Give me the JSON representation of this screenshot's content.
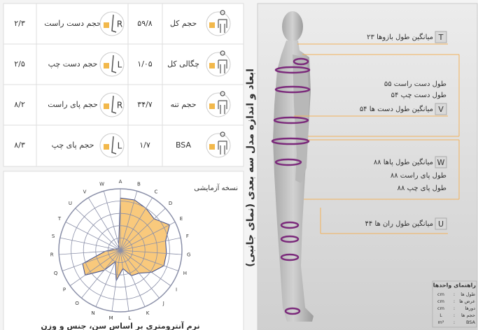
{
  "table": {
    "rows": [
      {
        "part_value": "۲/۳",
        "part_label": "حجم دست راست",
        "side": "R",
        "body_value": "۵۹/۸",
        "body_label": "حجم کل"
      },
      {
        "part_value": "۲/۵",
        "part_label": "حجم دست چپ",
        "side": "L",
        "body_value": "۱/۰۵",
        "body_label": "چگالی کل"
      },
      {
        "part_value": "۸/۲",
        "part_label": "حجم پای راست",
        "side": "R",
        "body_value": "۳۴/۷",
        "body_label": "حجم تنه"
      },
      {
        "part_value": "۸/۳",
        "part_label": "حجم پای چپ",
        "side": "L",
        "body_value": "۱/۷",
        "body_label": "BSA"
      }
    ]
  },
  "chart_data": {
    "type": "radar",
    "title": "نسخه آزمایشی",
    "caption": "نرم آنترومتری بر اساس سن، جنس و وزن",
    "categories": [
      "A",
      "B",
      "C",
      "D",
      "E",
      "F",
      "G",
      "H",
      "I",
      "J",
      "K",
      "L",
      "M",
      "N",
      "O",
      "P",
      "Q",
      "R",
      "S",
      "T",
      "U",
      "V",
      "W"
    ],
    "values": [
      85,
      85,
      80,
      75,
      90,
      75,
      75,
      75,
      62,
      48,
      45,
      30,
      50,
      20,
      42,
      70,
      65,
      25,
      10,
      5,
      5,
      5,
      10
    ],
    "rlim": [
      0,
      100
    ],
    "rticks": [
      20,
      40,
      60,
      80,
      100
    ],
    "fill": "#f9c97c",
    "grid_color": "#8a8fa8"
  },
  "figure": {
    "title": "ابعاد و اندازه مدل سه بعدی (نمای جانبی)",
    "annotations": [
      {
        "key": "T",
        "text": "میانگین طول بازوها ۲۳"
      },
      {
        "text": "طول دست راست ۵۵"
      },
      {
        "text": "طول دست چپ ۵۴"
      },
      {
        "key": "V",
        "text": "میانگین طول دست ها ۵۴"
      },
      {
        "key": "W",
        "text": "میانگین طول پاها ۸۸"
      },
      {
        "text": "طول پای راست ۸۸"
      },
      {
        "text": "طول پای چپ ۸۸"
      },
      {
        "key": "U",
        "text": "میانگین طول ران ها ۴۴"
      }
    ]
  },
  "legend": {
    "title": "راهنمای واحدها",
    "separator": ":",
    "rows": [
      {
        "label": "طول ها",
        "unit": "cm"
      },
      {
        "label": "عرض ها",
        "unit": "cm"
      },
      {
        "label": "دورها",
        "unit": "cm"
      },
      {
        "label": "حجم ها",
        "unit": "L"
      },
      {
        "label": "BSA",
        "unit": "m²"
      }
    ]
  }
}
